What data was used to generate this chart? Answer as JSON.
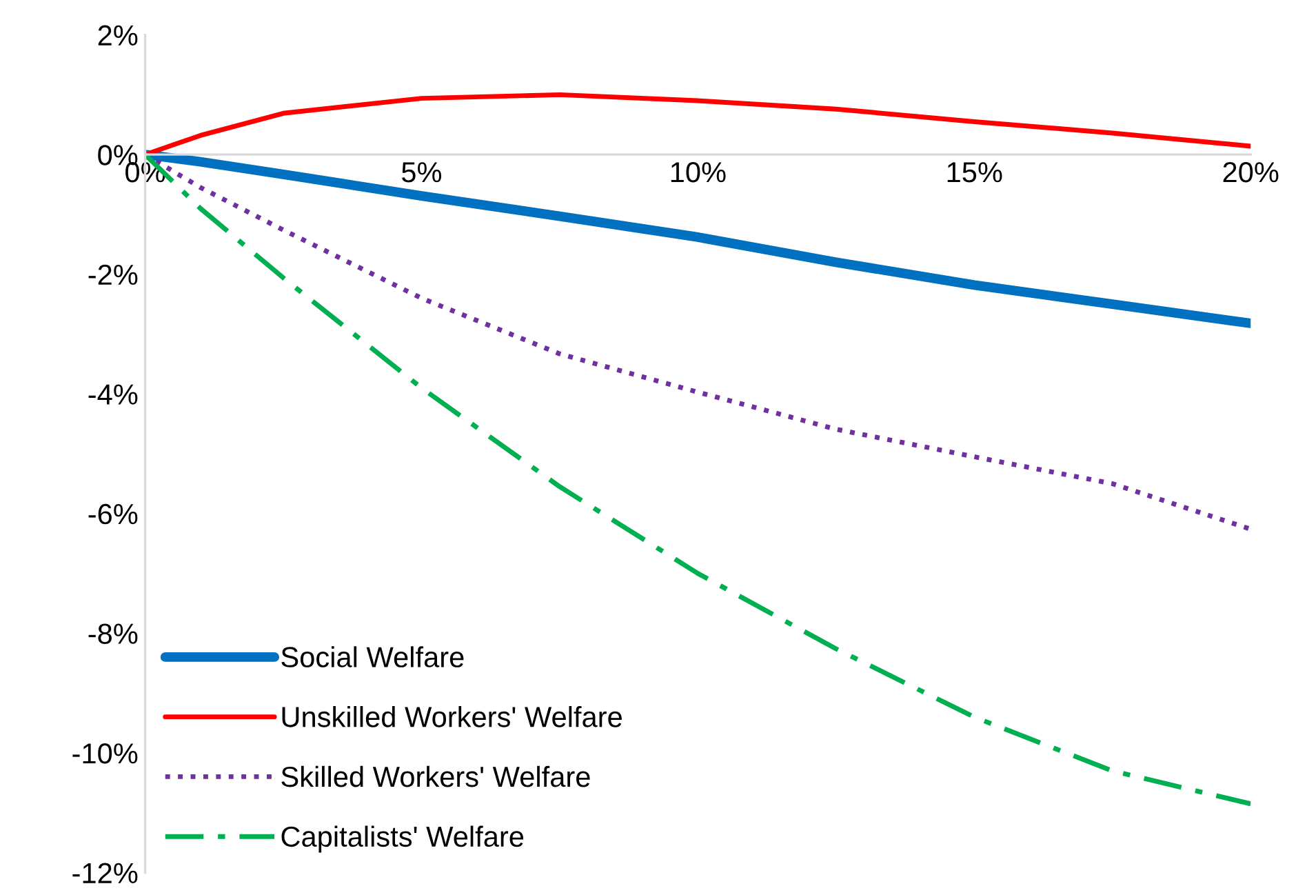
{
  "chart_data": {
    "type": "line",
    "x": [
      0,
      1,
      2.5,
      5,
      7.5,
      10,
      12.5,
      15,
      17.5,
      20
    ],
    "series": [
      {
        "name": "Social Welfare",
        "color": "#0070c0",
        "line_style": "solid",
        "values": [
          0,
          -0.12,
          -0.33,
          -0.69,
          -1.03,
          -1.38,
          -1.8,
          -2.18,
          -2.5,
          -2.82
        ]
      },
      {
        "name": "Unskilled Workers' Welfare",
        "color": "#ff0000",
        "line_style": "solid",
        "values": [
          0,
          0.32,
          0.69,
          0.94,
          1.0,
          0.9,
          0.76,
          0.55,
          0.36,
          0.14
        ]
      },
      {
        "name": "Skilled Workers' Welfare",
        "color": "#7030a0",
        "line_style": "dotted",
        "values": [
          0,
          -0.55,
          -1.26,
          -2.4,
          -3.33,
          -3.97,
          -4.59,
          -5.05,
          -5.5,
          -6.26
        ]
      },
      {
        "name": "Capitalists' Welfare",
        "color": "#00b050",
        "line_style": "dashdot",
        "values": [
          0,
          -0.9,
          -2.06,
          -3.9,
          -5.55,
          -7.0,
          -8.26,
          -9.4,
          -10.3,
          -10.85
        ]
      }
    ],
    "xlim": [
      0,
      20
    ],
    "ylim": [
      -12,
      2
    ],
    "xticks": [
      {
        "value": 0,
        "label": "0%"
      },
      {
        "value": 5,
        "label": "5%"
      },
      {
        "value": 10,
        "label": "10%"
      },
      {
        "value": 15,
        "label": "15%"
      },
      {
        "value": 20,
        "label": "20%"
      }
    ],
    "yticks": [
      {
        "value": 2,
        "label": "2%"
      },
      {
        "value": 0,
        "label": "0%"
      },
      {
        "value": -2,
        "label": "-2%"
      },
      {
        "value": -4,
        "label": "-4%"
      },
      {
        "value": -6,
        "label": "-6%"
      },
      {
        "value": -8,
        "label": "-8%"
      },
      {
        "value": -10,
        "label": "-10%"
      },
      {
        "value": -12,
        "label": "-12%"
      }
    ],
    "grid": false,
    "legend": "bottom left"
  }
}
